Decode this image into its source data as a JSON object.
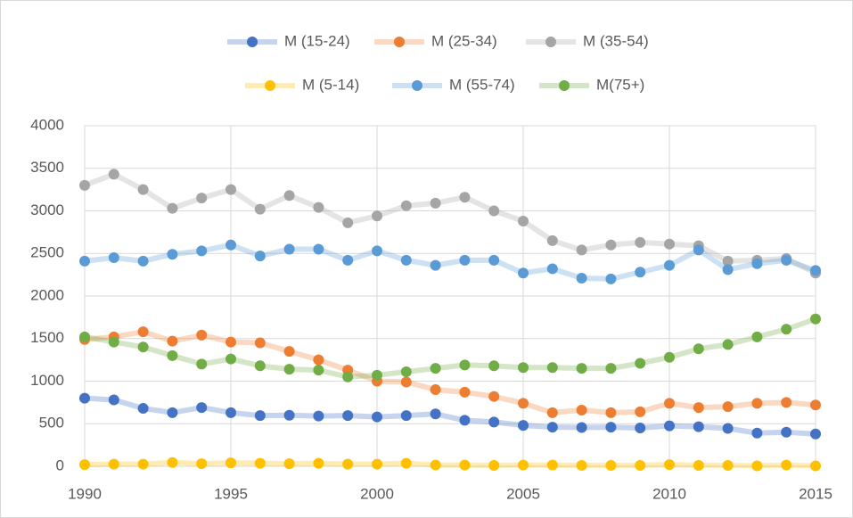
{
  "chart_data": {
    "type": "line",
    "x": [
      1990,
      1991,
      1992,
      1993,
      1994,
      1995,
      1996,
      1997,
      1998,
      1999,
      2000,
      2001,
      2002,
      2003,
      2004,
      2005,
      2006,
      2007,
      2008,
      2009,
      2010,
      2011,
      2012,
      2013,
      2014,
      2015
    ],
    "series": [
      {
        "name": "M (15-24)",
        "color": "#4472c4",
        "values": [
          800,
          780,
          680,
          630,
          690,
          630,
          595,
          600,
          590,
          595,
          580,
          595,
          615,
          540,
          520,
          480,
          460,
          455,
          460,
          450,
          475,
          465,
          445,
          390,
          400,
          380
        ]
      },
      {
        "name": "M (25-34)",
        "color": "#ed7d31",
        "values": [
          1490,
          1520,
          1580,
          1470,
          1540,
          1460,
          1450,
          1350,
          1250,
          1130,
          1000,
          990,
          900,
          870,
          820,
          740,
          630,
          660,
          630,
          640,
          740,
          690,
          700,
          740,
          750,
          720
        ]
      },
      {
        "name": "M (35-54)",
        "color": "#a5a5a5",
        "values": [
          3300,
          3430,
          3250,
          3030,
          3150,
          3250,
          3020,
          3180,
          3040,
          2860,
          2940,
          3060,
          3090,
          3160,
          3000,
          2880,
          2650,
          2540,
          2600,
          2630,
          2610,
          2590,
          2410,
          2420,
          2440,
          2270
        ]
      },
      {
        "name": "M (5-14)",
        "color": "#ffc000",
        "values": [
          20,
          25,
          25,
          45,
          30,
          40,
          35,
          30,
          35,
          25,
          25,
          35,
          15,
          15,
          10,
          15,
          15,
          10,
          10,
          10,
          20,
          10,
          10,
          5,
          15,
          5
        ]
      },
      {
        "name": "M (55-74)",
        "color": "#5b9bd5",
        "values": [
          2410,
          2450,
          2410,
          2490,
          2530,
          2600,
          2470,
          2550,
          2550,
          2420,
          2530,
          2420,
          2360,
          2420,
          2420,
          2270,
          2320,
          2210,
          2200,
          2280,
          2360,
          2540,
          2310,
          2380,
          2420,
          2300
        ]
      },
      {
        "name": "M(75+)",
        "color": "#70ad47",
        "values": [
          1520,
          1460,
          1400,
          1300,
          1200,
          1260,
          1180,
          1140,
          1130,
          1050,
          1070,
          1110,
          1150,
          1190,
          1180,
          1160,
          1160,
          1150,
          1150,
          1210,
          1280,
          1380,
          1430,
          1520,
          1610,
          1730
        ]
      }
    ],
    "xlim": [
      1990,
      2015
    ],
    "xticks": [
      1990,
      1995,
      2000,
      2005,
      2010,
      2015
    ],
    "ylim": [
      0,
      4000
    ],
    "yticks": [
      0,
      500,
      1000,
      1500,
      2000,
      2500,
      3000,
      3500,
      4000
    ],
    "grid": true
  }
}
